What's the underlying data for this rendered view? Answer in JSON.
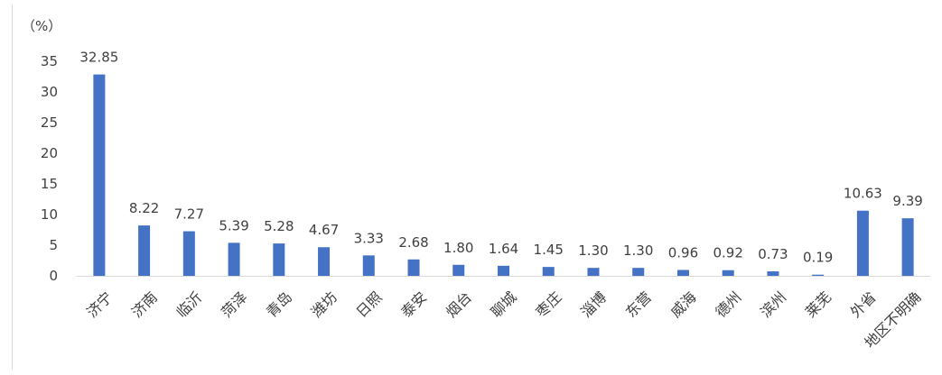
{
  "chart_data": {
    "type": "bar",
    "ylabel": "（%）",
    "ylim": [
      0,
      35
    ],
    "yticks": [
      0,
      5,
      10,
      15,
      20,
      25,
      30,
      35
    ],
    "grid": false,
    "legend": "none",
    "bar_color": "#4472c4",
    "categories": [
      "济宁",
      "济南",
      "临沂",
      "菏泽",
      "青岛",
      "潍坊",
      "日照",
      "泰安",
      "烟台",
      "聊城",
      "枣庄",
      "淄博",
      "东营",
      "威海",
      "德州",
      "滨州",
      "莱芜",
      "外省",
      "地区不明确"
    ],
    "values": [
      32.85,
      8.22,
      7.27,
      5.39,
      5.28,
      4.67,
      3.33,
      2.68,
      1.8,
      1.64,
      1.45,
      1.3,
      1.3,
      0.96,
      0.92,
      0.73,
      0.19,
      10.63,
      9.39
    ],
    "value_labels": [
      "32.85",
      "8.22",
      "7.27",
      "5.39",
      "5.28",
      "4.67",
      "3.33",
      "2.68",
      "1.80",
      "1.64",
      "1.45",
      "1.30",
      "1.30",
      "0.96",
      "0.92",
      "0.73",
      "0.19",
      "10.63",
      "9.39"
    ]
  }
}
